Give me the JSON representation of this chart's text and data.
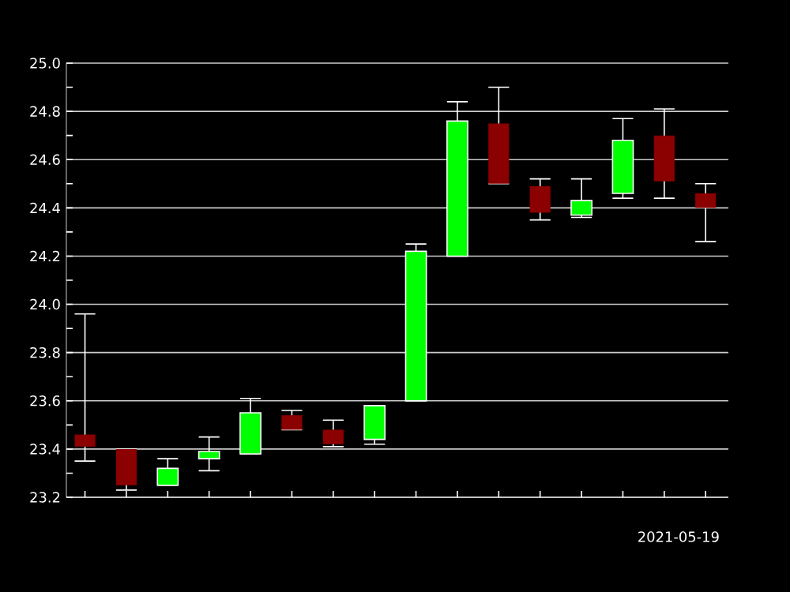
{
  "chart_data": {
    "type": "candlestick",
    "categories": [
      null,
      null,
      null,
      null,
      null,
      null,
      null,
      null,
      null,
      null,
      null,
      null,
      null,
      null,
      null,
      null
    ],
    "ohlc": [
      [
        23.46,
        23.96,
        23.35,
        23.41
      ],
      [
        23.4,
        23.4,
        23.23,
        23.25
      ],
      [
        23.25,
        23.36,
        23.25,
        23.32
      ],
      [
        23.36,
        23.45,
        23.31,
        23.39
      ],
      [
        23.38,
        23.61,
        23.38,
        23.55
      ],
      [
        23.54,
        23.56,
        23.48,
        23.48
      ],
      [
        23.48,
        23.52,
        23.41,
        23.42
      ],
      [
        23.44,
        23.58,
        23.42,
        23.58
      ],
      [
        23.6,
        24.25,
        23.6,
        24.22
      ],
      [
        24.2,
        24.84,
        24.2,
        24.76
      ],
      [
        24.75,
        24.9,
        24.5,
        24.5
      ],
      [
        24.49,
        24.52,
        24.35,
        24.38
      ],
      [
        24.37,
        24.52,
        24.36,
        24.43
      ],
      [
        24.46,
        24.77,
        24.44,
        24.68
      ],
      [
        24.7,
        24.81,
        24.44,
        24.51
      ],
      [
        24.46,
        24.5,
        24.26,
        24.4
      ]
    ],
    "colors": [
      "#8b0000",
      "#8b0000",
      "#00ff00",
      "#00ff00",
      "#00ff00",
      "#8b0000",
      "#8b0000",
      "#00ff00",
      "#00ff00",
      "#00ff00",
      "#8b0000",
      "#8b0000",
      "#00ff00",
      "#00ff00",
      "#8b0000",
      "#8b0000"
    ],
    "ylim": [
      23.2,
      25.0
    ],
    "yticks": [
      {
        "value": 23.2,
        "label": "23.2"
      },
      {
        "value": 23.4,
        "label": "23.4"
      },
      {
        "value": 23.6,
        "label": "23.6"
      },
      {
        "value": 23.8,
        "label": "23.8"
      },
      {
        "value": 24.0,
        "label": "24.0"
      },
      {
        "value": 24.2,
        "label": "24.2"
      },
      {
        "value": 24.4,
        "label": "24.4"
      },
      {
        "value": 24.6,
        "label": "24.6"
      },
      {
        "value": 24.8,
        "label": "24.8"
      },
      {
        "value": 25.0,
        "label": "25.0"
      }
    ],
    "grid": "y",
    "tick_labels": "y",
    "annotations": [
      "2021-05-19"
    ]
  }
}
